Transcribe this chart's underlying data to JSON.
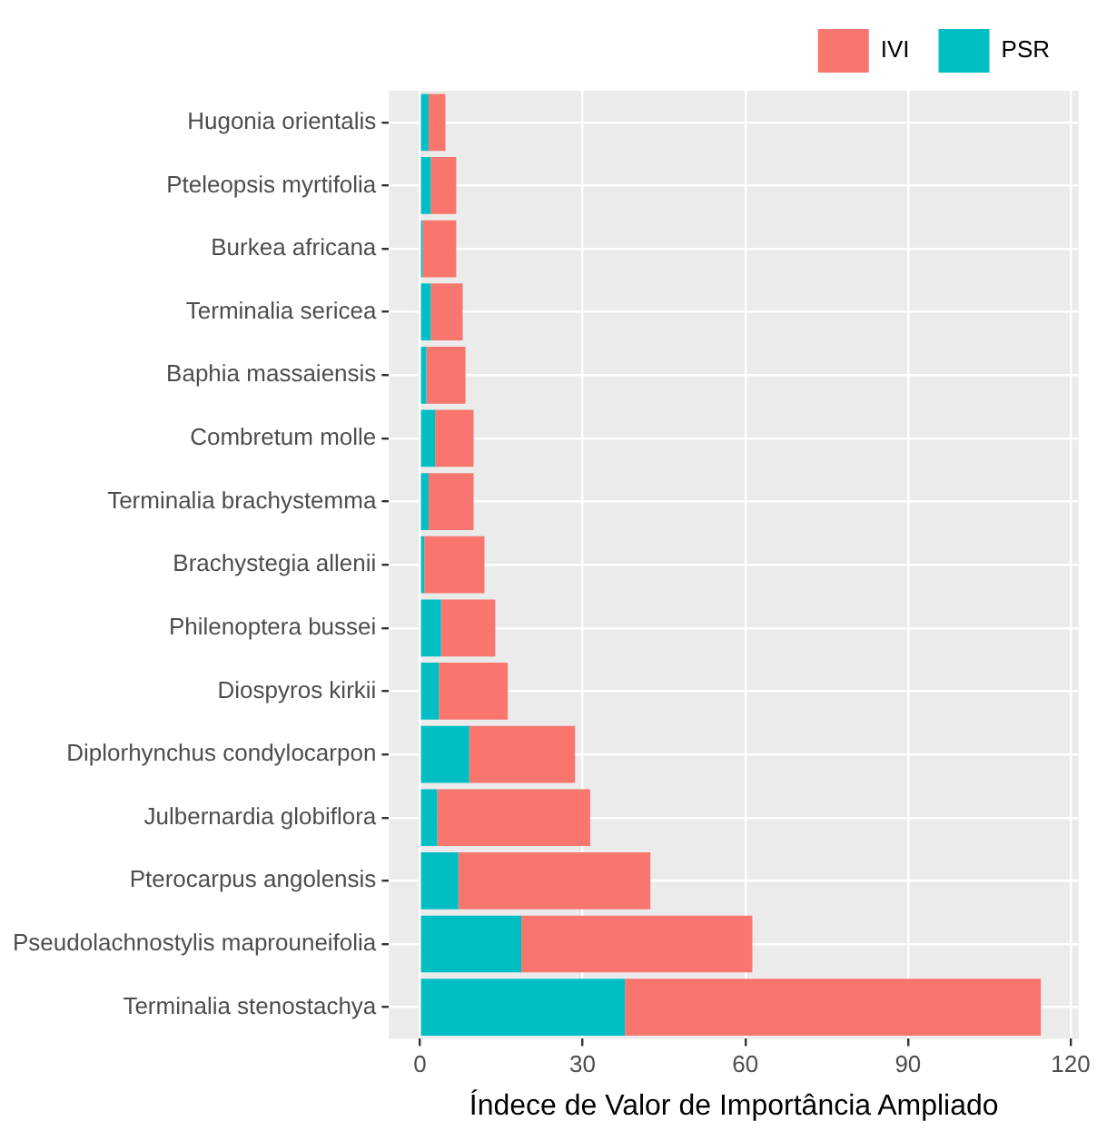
{
  "chart_data": {
    "type": "bar",
    "orientation": "horizontal",
    "stacked": true,
    "xlabel": "Índece de Valor de Importância Ampliado",
    "categories": [
      "Hugonia orientalis",
      "Pteleopsis myrtifolia",
      "Burkea africana",
      "Terminalia sericea",
      "Baphia massaiensis",
      "Combretum molle",
      "Terminalia brachystemma",
      "Brachystegia allenii",
      "Philenoptera bussei",
      "Diospyros kirkii",
      "Diplorhynchus condylocarpon",
      "Julbernardia globiflora",
      "Pterocarpus angolensis",
      "Pseudolachnostylis maprouneifolia",
      "Terminalia stenostachya"
    ],
    "series": [
      {
        "name": "PSR",
        "color": "#00bfc4",
        "values": [
          1.6,
          2.0,
          0.5,
          2.0,
          1.2,
          2.8,
          1.6,
          0.8,
          3.9,
          3.5,
          9.1,
          3.2,
          7.1,
          18.7,
          37.8
        ]
      },
      {
        "name": "IVI",
        "color": "#f8766d",
        "values": [
          3.1,
          4.7,
          6.2,
          5.9,
          7.2,
          7.1,
          8.3,
          11.1,
          10.0,
          12.7,
          19.5,
          28.2,
          35.4,
          42.6,
          76.7
        ]
      }
    ],
    "xlim": [
      -5.7,
      121.5
    ],
    "xticks": [
      0,
      30,
      60,
      90,
      120
    ],
    "grid": true,
    "legend": "top right"
  }
}
